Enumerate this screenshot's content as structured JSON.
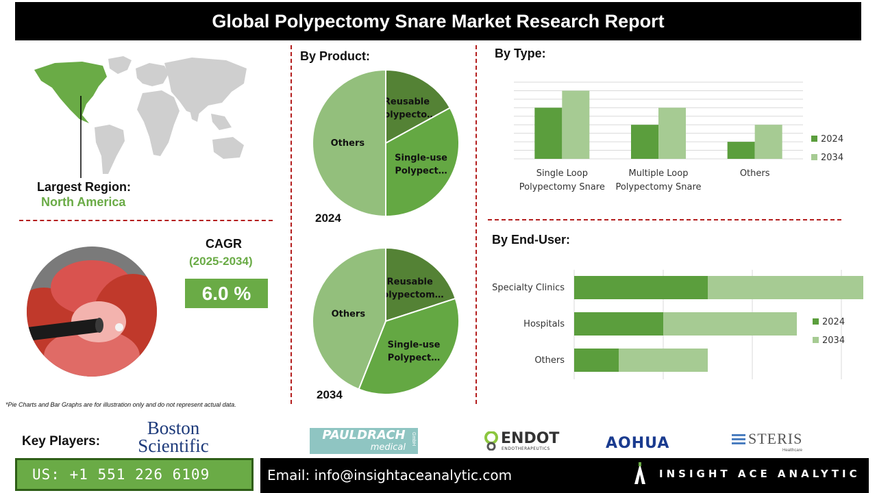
{
  "title": "Global Polypectomy Snare Market Research Report",
  "region": {
    "label": "Largest Region:",
    "value": "North America",
    "map_color_highlight": "#6aab46",
    "map_color_base": "#cfcfcf"
  },
  "cagr": {
    "label": "CAGR",
    "period": "(2025-2034)",
    "value": "6.0 %"
  },
  "footnote": "*Pie Charts and Bar Graphs are for illustration only and do not represent actual data.",
  "colors": {
    "accent_green": "#6aab46",
    "series_2024": "#5b9e3d",
    "series_2034": "#a6cb93",
    "pie_dark": "#548235",
    "pie_mid": "#64a843",
    "pie_light": "#93bf7c",
    "divider_red": "#b31c1c"
  },
  "by_product": {
    "label": "By Product:"
  },
  "by_type": {
    "label": "By Type:"
  },
  "by_end_user": {
    "label": "By End-User:"
  },
  "chart_data": [
    {
      "type": "pie",
      "year_label": "2024",
      "slices": [
        {
          "label": "Reusable Polypecto…",
          "value": 17
        },
        {
          "label": "Single-use Polypect…",
          "value": 33
        },
        {
          "label": "Others",
          "value": 50
        }
      ]
    },
    {
      "type": "pie",
      "year_label": "2034",
      "slices": [
        {
          "label": "Reusable Polypectom…",
          "value": 20
        },
        {
          "label": "Single-use Polypect…",
          "value": 36
        },
        {
          "label": "Others",
          "value": 44
        }
      ]
    },
    {
      "type": "bar",
      "categories": [
        "Single Loop Polypectomy Snare",
        "Multiple Loop Polypectomy Snare",
        "Others"
      ],
      "series": [
        {
          "name": "2024",
          "values": [
            3,
            2,
            1
          ]
        },
        {
          "name": "2034",
          "values": [
            4,
            3,
            2
          ]
        }
      ],
      "ylim": [
        0,
        4.5
      ]
    },
    {
      "type": "bar",
      "orientation": "horizontal",
      "stacked": true,
      "categories": [
        "Specialty Clinics",
        "Hospitals",
        "Others"
      ],
      "series": [
        {
          "name": "2024",
          "values": [
            3,
            2,
            1
          ]
        },
        {
          "name": "2034",
          "values": [
            4,
            3,
            2
          ]
        }
      ],
      "xlim": [
        0,
        8
      ]
    }
  ],
  "key_players": {
    "label": "Key Players:",
    "logos": [
      {
        "name": "Boston Scientific",
        "line1": "Boston",
        "line2": "Scientific"
      },
      {
        "name": "PAULDRACH medical",
        "line1": "PAULDRACH",
        "line2": "medical",
        "small": "GmbH"
      },
      {
        "name": "ENDOT",
        "line1": "ENDOT",
        "line2": "ENDOTHERAPEUTICS"
      },
      {
        "name": "AOHUA",
        "line1": "AOHUA"
      },
      {
        "name": "STERIS",
        "line1": "STERIS",
        "line2": "Healthcare"
      }
    ]
  },
  "contact": {
    "phone": "US: +1 551 226 6109",
    "email": "Email: info@insightaceanalytic.com",
    "brand": "INSIGHT ACE ANALYTIC"
  }
}
